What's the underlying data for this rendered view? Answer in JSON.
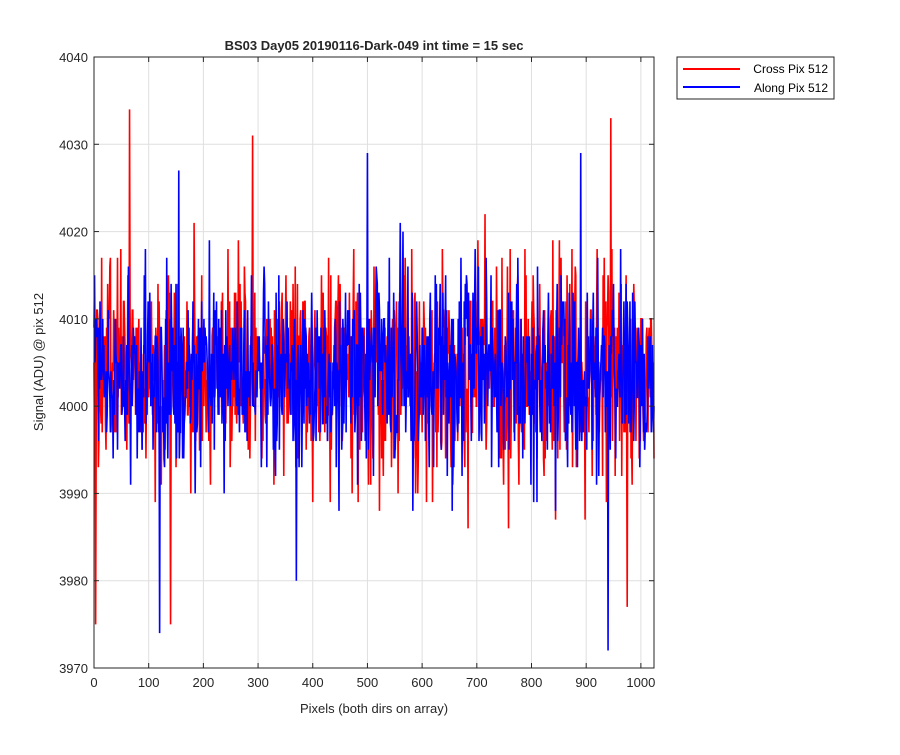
{
  "chart_data": {
    "type": "line",
    "title": "BS03 Day05 20190116-Dark-049 int time = 15 sec",
    "xlabel": "Pixels (both dirs on array)",
    "ylabel": "Signal (ADU) @ pix 512",
    "xlim": [
      0,
      1024
    ],
    "ylim": [
      3970,
      4040
    ],
    "xticks": [
      0,
      100,
      200,
      300,
      400,
      500,
      600,
      700,
      800,
      900,
      1000
    ],
    "yticks": [
      3970,
      3980,
      3990,
      4000,
      4010,
      4020,
      4030,
      4040
    ],
    "grid": true,
    "legend_position": "outside-top-right",
    "series": [
      {
        "name": "Cross Pix 512",
        "color": "#ff0000",
        "mean": 4004,
        "sigma": 6,
        "peaks": [
          [
            65,
            4034
          ],
          [
            290,
            4031
          ],
          [
            945,
            4033
          ]
        ],
        "troughs": [
          [
            3,
            3975
          ],
          [
            140,
            3975
          ],
          [
            975,
            3977
          ]
        ]
      },
      {
        "name": "Along Pix 512",
        "color": "#0000ff",
        "mean": 4004,
        "sigma": 5.5,
        "peaks": [
          [
            500,
            4029
          ],
          [
            890,
            4029
          ],
          [
            155,
            4027
          ]
        ],
        "troughs": [
          [
            120,
            3974
          ],
          [
            940,
            3972
          ],
          [
            370,
            3980
          ]
        ]
      }
    ]
  }
}
